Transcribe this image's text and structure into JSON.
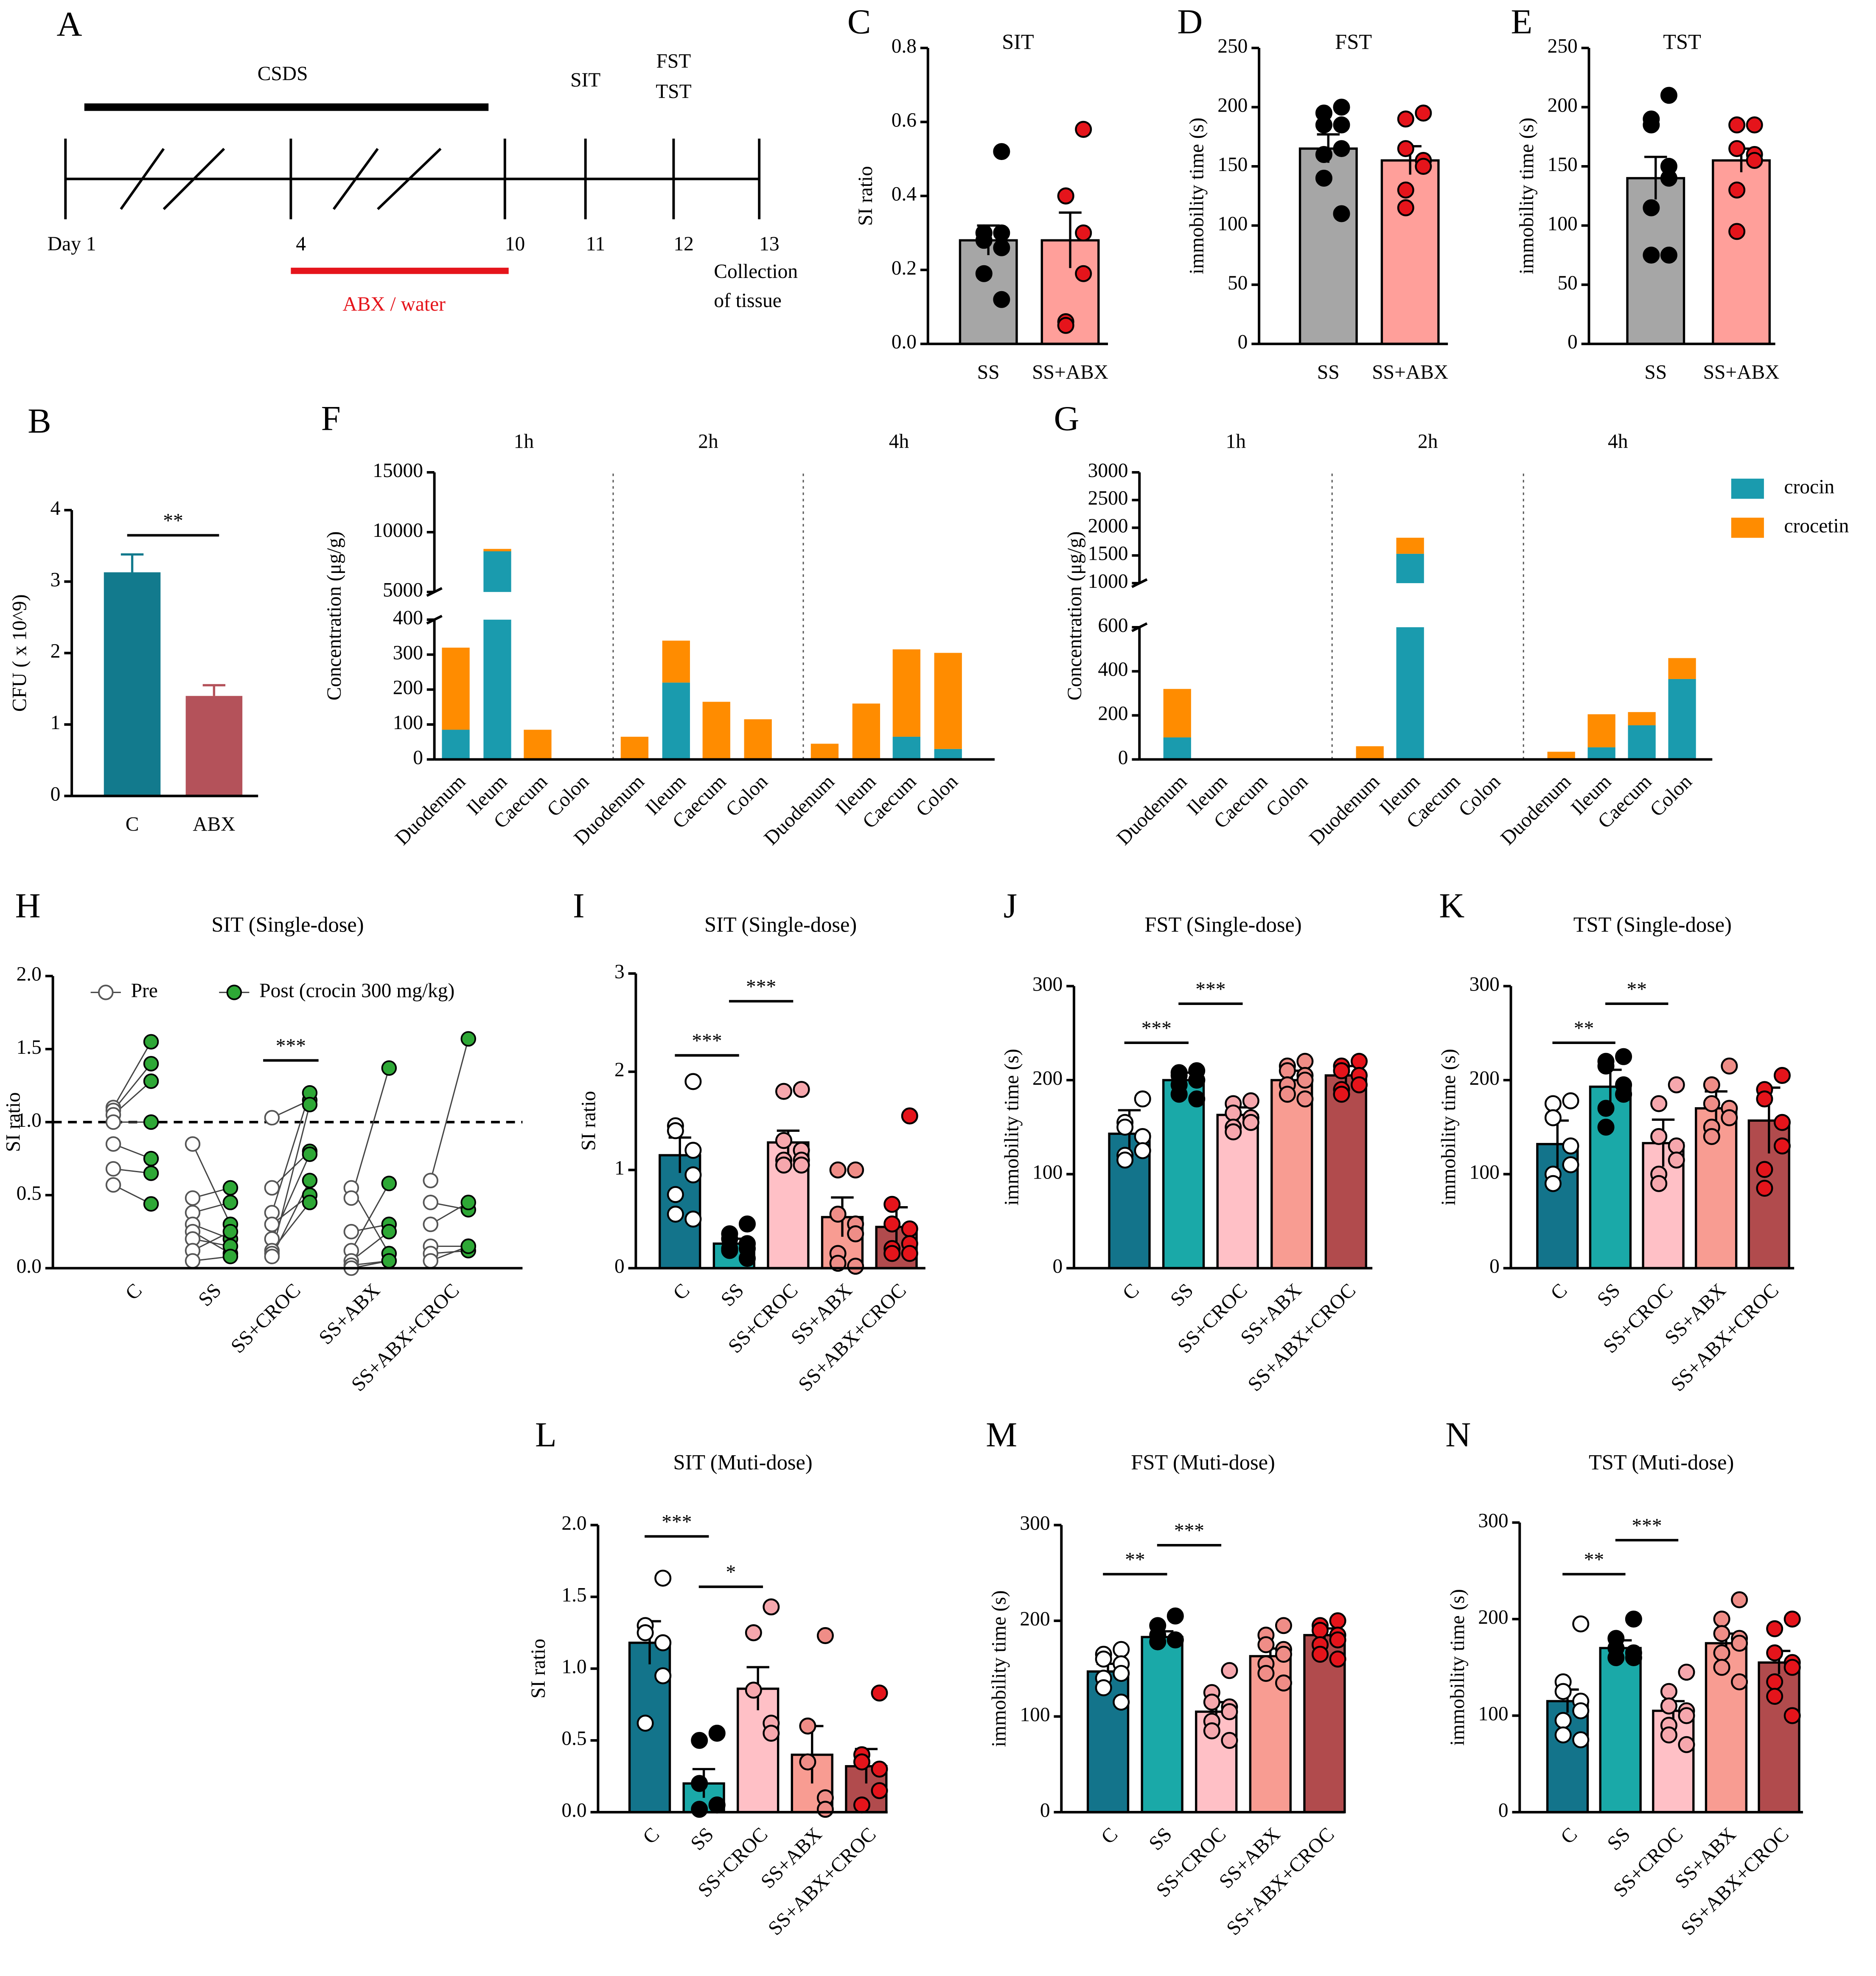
{
  "chart_data": [
    {
      "type": "timeline",
      "panel": "A",
      "xticks": [
        {
          "value": 1,
          "label": "Day 1"
        },
        4,
        10,
        11,
        12,
        13
      ],
      "phases": [
        {
          "label": "CSDS",
          "from": 1,
          "to": 10,
          "color": "#000000"
        },
        {
          "label": "ABX / water",
          "from": 4,
          "to": 10,
          "color": "#e5141b"
        }
      ],
      "events": [
        {
          "label": "SIT",
          "day": 11
        },
        {
          "label": "FST",
          "day": 12
        },
        {
          "label": "TST",
          "day": 12
        }
      ],
      "end_label": [
        "Collection",
        "of tissue"
      ]
    },
    {
      "type": "bar",
      "panel": "B",
      "y_label": "CFU ( x 10^9)",
      "categories": [
        "C",
        "ABX"
      ],
      "values": [
        3.13,
        1.4
      ],
      "errors": [
        0.25,
        0.15
      ],
      "colors": [
        "#127a8d",
        "#b4525a"
      ],
      "ylim": [
        0,
        4
      ],
      "yticks": [
        0,
        1,
        2,
        3,
        4
      ],
      "significance": [
        {
          "text": "**",
          "between": [
            "C",
            "ABX"
          ]
        }
      ]
    },
    {
      "type": "bar",
      "panel": "C",
      "title": "SIT",
      "y_label": "SI ratio",
      "categories": [
        "SS",
        "SS+ABX"
      ],
      "values": [
        0.28,
        0.28
      ],
      "errors": [
        0.04,
        0.075
      ],
      "colors": [
        "#a6a6a6",
        "#ff9f9a"
      ],
      "point_colors": [
        "#000000",
        "#e5141b"
      ],
      "points": [
        [
          0.52,
          0.3,
          0.28,
          0.3,
          0.26,
          0.3,
          0.19,
          0.12
        ],
        [
          0.58,
          0.4,
          0.4,
          0.3,
          0.19,
          0.06,
          0.05
        ]
      ],
      "ylim": [
        0,
        0.8
      ],
      "yticks": [
        {
          "value": 0,
          "label": "0.0"
        },
        0.2,
        0.4,
        0.6,
        0.8
      ]
    },
    {
      "type": "bar",
      "panel": "D",
      "title": "FST",
      "y_label": "immobility time (s)",
      "categories": [
        "SS",
        "SS+ABX"
      ],
      "values": [
        165,
        155
      ],
      "errors": [
        12,
        12
      ],
      "colors": [
        "#a6a6a6",
        "#ff9f9a"
      ],
      "point_colors": [
        "#000000",
        "#e5141b"
      ],
      "points": [
        [
          200,
          195,
          185,
          185,
          165,
          160,
          140,
          110
        ],
        [
          195,
          190,
          165,
          155,
          150,
          130,
          115
        ]
      ],
      "ylim": [
        0,
        250
      ],
      "yticks": [
        0,
        50,
        100,
        150,
        200,
        250
      ]
    },
    {
      "type": "bar",
      "panel": "E",
      "title": "TST",
      "y_label": "immobility time (s)",
      "categories": [
        "SS",
        "SS+ABX"
      ],
      "values": [
        140,
        155
      ],
      "errors": [
        18,
        10
      ],
      "colors": [
        "#a6a6a6",
        "#ff9f9a"
      ],
      "point_colors": [
        "#000000",
        "#e5141b"
      ],
      "points": [
        [
          210,
          190,
          185,
          150,
          140,
          115,
          75,
          75
        ],
        [
          185,
          185,
          165,
          160,
          155,
          130,
          95
        ]
      ],
      "ylim": [
        0,
        250
      ],
      "yticks": [
        0,
        50,
        100,
        150,
        200,
        250
      ]
    },
    {
      "type": "stacked_bar",
      "panel": "F",
      "y_label": "Concentration (μg/g)",
      "groups": [
        "1h",
        "2h",
        "4h"
      ],
      "categories": [
        "Duodenum",
        "Ileum",
        "Caecum",
        "Colon"
      ],
      "series": [
        {
          "color": "#1a9bae",
          "values": [
            [
              85,
              8400,
              0,
              0
            ],
            [
              0,
              220,
              0,
              0
            ],
            [
              0,
              0,
              65,
              30
            ]
          ]
        },
        {
          "color": "#ff8c00",
          "values": [
            [
              235,
              200,
              85,
              0
            ],
            [
              65,
              120,
              165,
              115
            ],
            [
              45,
              160,
              250,
              275
            ]
          ]
        }
      ],
      "ylim": [
        0,
        15000
      ],
      "y_break": [
        400,
        5000
      ],
      "yticks": [
        0,
        100,
        200,
        300,
        400,
        5000,
        10000,
        15000
      ]
    },
    {
      "type": "stacked_bar",
      "panel": "G",
      "y_label": "Concentration (μg/g)",
      "groups": [
        "1h",
        "2h",
        "4h"
      ],
      "categories": [
        "Duodenum",
        "Ileum",
        "Caecum",
        "Colon"
      ],
      "series": [
        {
          "name": "crocin",
          "color": "#1a9bae",
          "values": [
            [
              100,
              0,
              0,
              0
            ],
            [
              0,
              1530,
              0,
              0
            ],
            [
              0,
              55,
              155,
              365
            ]
          ]
        },
        {
          "name": "crocetin",
          "color": "#ff8c00",
          "values": [
            [
              220,
              5,
              0,
              0
            ],
            [
              60,
              290,
              0,
              0
            ],
            [
              35,
              150,
              60,
              95
            ]
          ]
        }
      ],
      "ylim": [
        0,
        3000
      ],
      "y_break": [
        600,
        1000
      ],
      "yticks": [
        0,
        200,
        400,
        600,
        1000,
        1500,
        2000,
        2500,
        3000
      ]
    },
    {
      "type": "paired",
      "panel": "H",
      "title": "SIT (Single-dose)",
      "y_label": "SI ratio",
      "categories": [
        "C",
        "SS",
        "SS+CROC",
        "SS+ABX",
        "SS+ABX+CROC"
      ],
      "series": [
        {
          "name": "Pre",
          "color": "#ffffff",
          "values": [
            [
              1.1,
              1.08,
              1.05,
              1.0,
              0.85,
              0.68,
              0.57
            ],
            [
              0.85,
              0.48,
              0.38,
              0.3,
              0.25,
              0.2,
              0.12,
              0.05
            ],
            [
              1.03,
              0.55,
              0.38,
              0.3,
              0.2,
              0.12,
              0.1,
              0.08
            ],
            [
              0.55,
              0.48,
              0.25,
              0.12,
              0.05,
              0.02,
              0.0
            ],
            [
              0.6,
              0.45,
              0.3,
              0.15,
              0.1,
              0.05
            ]
          ]
        },
        {
          "name": "Post (crocin 300 mg/kg)",
          "color": "#2ea836",
          "values": [
            [
              1.55,
              1.4,
              1.28,
              1.0,
              0.75,
              0.65,
              0.44
            ],
            [
              0.3,
              0.55,
              0.45,
              0.2,
              0.1,
              0.15,
              0.25,
              0.08
            ],
            [
              1.15,
              0.8,
              1.2,
              0.5,
              0.78,
              0.45,
              1.12,
              0.6
            ],
            [
              0.1,
              1.37,
              0.3,
              0.58,
              0.25,
              0.05,
              0.05
            ],
            [
              1.57,
              0.4,
              0.45,
              0.15,
              0.12,
              0.15
            ]
          ]
        }
      ],
      "ref_line": 1,
      "ylim": [
        0,
        2
      ],
      "yticks": [
        {
          "value": 0,
          "label": "0.0"
        },
        0.5,
        {
          "value": 1,
          "label": "1.0"
        },
        1.5,
        {
          "value": 2,
          "label": "2.0"
        }
      ],
      "significance": [
        {
          "text": "***",
          "over": "SS+CROC"
        }
      ]
    },
    {
      "type": "bar",
      "panel": "I",
      "title": "SIT (Single-dose)",
      "y_label": "SI ratio",
      "categories": [
        "C",
        "SS",
        "SS+CROC",
        "SS+ABX",
        "SS+ABX+CROC"
      ],
      "values": [
        1.15,
        0.25,
        1.28,
        0.52,
        0.42
      ],
      "errors": [
        0.18,
        0.05,
        0.12,
        0.2,
        0.2
      ],
      "colors": [
        "#13748b",
        "#1aa9a8",
        "#ffc0c6",
        "#f89c92",
        "#b14b4d"
      ],
      "point_colors": [
        "#ffffff",
        "#000000",
        "#f6a7ad",
        "#ef8d87",
        "#e5141b"
      ],
      "points": [
        [
          1.9,
          1.45,
          1.4,
          1.2,
          0.95,
          0.75,
          0.55,
          0.5
        ],
        [
          0.45,
          0.35,
          0.3,
          0.25,
          0.2,
          0.2,
          0.18,
          0.1
        ],
        [
          1.82,
          1.8,
          1.3,
          1.2,
          1.1,
          1.1,
          1.05,
          1.05
        ],
        [
          1.0,
          1.0,
          0.55,
          0.45,
          0.35,
          0.15,
          0.05,
          0.02
        ],
        [
          1.55,
          0.65,
          0.45,
          0.4,
          0.25,
          0.2,
          0.15,
          0.15
        ]
      ],
      "ylim": [
        0,
        3
      ],
      "yticks": [
        0,
        1,
        2,
        3
      ],
      "significance": [
        {
          "text": "***",
          "between": [
            "C",
            "SS"
          ]
        },
        {
          "text": "***",
          "between": [
            "SS",
            "SS+CROC"
          ]
        }
      ]
    },
    {
      "type": "bar",
      "panel": "J",
      "title": "FST (Single-dose)",
      "y_label": "immobility time (s)",
      "categories": [
        "C",
        "SS",
        "SS+CROC",
        "SS+ABX",
        "SS+ABX+CROC"
      ],
      "values": [
        143,
        200,
        163,
        200,
        205
      ],
      "errors": [
        25,
        8,
        8,
        10,
        10
      ],
      "colors": [
        "#13748b",
        "#1aa9a8",
        "#ffc0c6",
        "#f89c92",
        "#b14b4d"
      ],
      "point_colors": [
        "#ffffff",
        "#000000",
        "#f6a7ad",
        "#ef8d87",
        "#e5141b"
      ],
      "points": [
        [
          180,
          155,
          150,
          140,
          125,
          120,
          115
        ],
        [
          210,
          208,
          205,
          200,
          200,
          195,
          185,
          180
        ],
        [
          178,
          175,
          165,
          160,
          155,
          150,
          145
        ],
        [
          220,
          215,
          210,
          205,
          200,
          195,
          185,
          180
        ],
        [
          220,
          215,
          210,
          205,
          195,
          190,
          185
        ]
      ],
      "ylim": [
        0,
        300
      ],
      "yticks": [
        0,
        100,
        200,
        300
      ],
      "significance": [
        {
          "text": "***",
          "between": [
            "C",
            "SS"
          ]
        },
        {
          "text": "***",
          "between": [
            "SS",
            "SS+CROC"
          ]
        }
      ]
    },
    {
      "type": "bar",
      "panel": "K",
      "title": "TST (Single-dose)",
      "y_label": "immobility time (s)",
      "categories": [
        "C",
        "SS",
        "SS+CROC",
        "SS+ABX",
        "SS+ABX+CROC"
      ],
      "values": [
        132,
        193,
        133,
        170,
        157
      ],
      "errors": [
        25,
        18,
        25,
        18,
        35
      ],
      "colors": [
        "#13748b",
        "#1aa9a8",
        "#ffc0c6",
        "#f89c92",
        "#b14b4d"
      ],
      "point_colors": [
        "#ffffff",
        "#000000",
        "#f6a7ad",
        "#ef8d87",
        "#e5141b"
      ],
      "points": [
        [
          178,
          175,
          160,
          130,
          110,
          100,
          90
        ],
        [
          225,
          220,
          215,
          195,
          185,
          170,
          150
        ],
        [
          195,
          175,
          140,
          130,
          115,
          100,
          90
        ],
        [
          215,
          195,
          175,
          170,
          160,
          150,
          140
        ],
        [
          205,
          190,
          180,
          155,
          130,
          105,
          85
        ]
      ],
      "ylim": [
        0,
        300
      ],
      "yticks": [
        0,
        100,
        200,
        300
      ],
      "significance": [
        {
          "text": "**",
          "between": [
            "C",
            "SS"
          ]
        },
        {
          "text": "**",
          "between": [
            "SS",
            "SS+CROC"
          ]
        }
      ]
    },
    {
      "type": "bar",
      "panel": "L",
      "title": "SIT (Muti-dose)",
      "y_label": "SI ratio",
      "categories": [
        "C",
        "SS",
        "SS+CROC",
        "SS+ABX",
        "SS+ABX+CROC"
      ],
      "values": [
        1.18,
        0.2,
        0.86,
        0.4,
        0.32
      ],
      "errors": [
        0.15,
        0.1,
        0.15,
        0.2,
        0.12
      ],
      "colors": [
        "#13748b",
        "#1aa9a8",
        "#ffc0c6",
        "#f89c92",
        "#b14b4d"
      ],
      "point_colors": [
        "#ffffff",
        "#000000",
        "#f6a7ad",
        "#ef8d87",
        "#e5141b"
      ],
      "points": [
        [
          1.63,
          1.3,
          1.25,
          1.18,
          0.95,
          0.62
        ],
        [
          0.55,
          0.5,
          0.2,
          0.05,
          0.05,
          0.02
        ],
        [
          1.43,
          1.25,
          0.85,
          0.62,
          0.55
        ],
        [
          1.23,
          0.6,
          0.35,
          0.1,
          0.02
        ],
        [
          0.83,
          0.4,
          0.35,
          0.3,
          0.15,
          0.05
        ]
      ],
      "ylim": [
        0,
        2
      ],
      "yticks": [
        {
          "value": 0,
          "label": "0.0"
        },
        0.5,
        {
          "value": 1,
          "label": "1.0"
        },
        1.5,
        {
          "value": 2,
          "label": "2.0"
        }
      ],
      "significance": [
        {
          "text": "***",
          "between": [
            "C",
            "SS"
          ]
        },
        {
          "text": "*",
          "between": [
            "SS",
            "SS+CROC"
          ]
        }
      ]
    },
    {
      "type": "bar",
      "panel": "M",
      "title": "FST (Muti-dose)",
      "y_label": "immobility time (s)",
      "categories": [
        "C",
        "SS",
        "SS+CROC",
        "SS+ABX",
        "SS+ABX+CROC"
      ],
      "values": [
        147,
        183,
        105,
        163,
        185
      ],
      "errors": [
        8,
        6,
        10,
        8,
        7
      ],
      "colors": [
        "#13748b",
        "#1aa9a8",
        "#ffc0c6",
        "#f89c92",
        "#b14b4d"
      ],
      "point_colors": [
        "#ffffff",
        "#000000",
        "#f6a7ad",
        "#ef8d87",
        "#e5141b"
      ],
      "points": [
        [
          170,
          165,
          160,
          155,
          145,
          140,
          130,
          115
        ],
        [
          205,
          195,
          185,
          180,
          180,
          178
        ],
        [
          148,
          125,
          115,
          110,
          105,
          95,
          85,
          75
        ],
        [
          195,
          185,
          175,
          170,
          165,
          155,
          145,
          135
        ],
        [
          200,
          195,
          190,
          185,
          180,
          175,
          165,
          160
        ]
      ],
      "ylim": [
        0,
        300
      ],
      "yticks": [
        0,
        100,
        200,
        300
      ],
      "significance": [
        {
          "text": "**",
          "between": [
            "C",
            "SS"
          ]
        },
        {
          "text": "***",
          "between": [
            "SS",
            "SS+CROC"
          ]
        }
      ]
    },
    {
      "type": "bar",
      "panel": "N",
      "title": "TST (Muti-dose)",
      "y_label": "immobility time (s)",
      "categories": [
        "C",
        "SS",
        "SS+CROC",
        "SS+ABX",
        "SS+ABX+CROC"
      ],
      "values": [
        115,
        170,
        105,
        175,
        155
      ],
      "errors": [
        12,
        8,
        10,
        10,
        12
      ],
      "colors": [
        "#13748b",
        "#1aa9a8",
        "#ffc0c6",
        "#f89c92",
        "#b14b4d"
      ],
      "point_colors": [
        "#ffffff",
        "#000000",
        "#f6a7ad",
        "#ef8d87",
        "#e5141b"
      ],
      "points": [
        [
          195,
          135,
          125,
          115,
          105,
          95,
          80,
          75
        ],
        [
          200,
          180,
          170,
          165,
          160,
          160
        ],
        [
          145,
          125,
          110,
          105,
          100,
          90,
          80,
          70
        ],
        [
          220,
          200,
          185,
          180,
          175,
          165,
          150,
          135
        ],
        [
          200,
          190,
          165,
          155,
          150,
          135,
          120,
          100
        ]
      ],
      "ylim": [
        0,
        300
      ],
      "yticks": [
        0,
        100,
        200,
        300
      ],
      "significance": [
        {
          "text": "**",
          "between": [
            "C",
            "SS"
          ]
        },
        {
          "text": "***",
          "between": [
            "SS",
            "SS+CROC"
          ]
        }
      ]
    }
  ]
}
